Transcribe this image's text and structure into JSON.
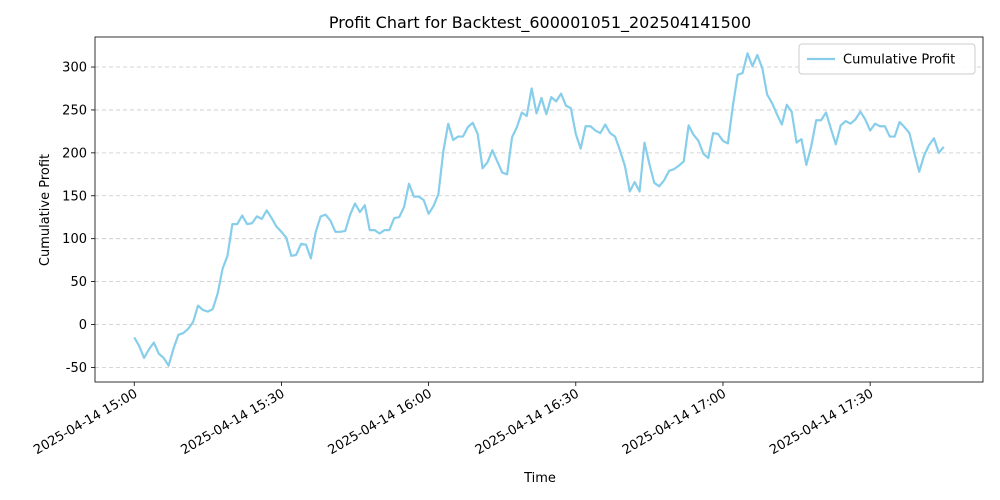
{
  "chart_data": {
    "type": "line",
    "title": "Profit Chart for Backtest_600001051_202504141500",
    "x_label": "Time",
    "y_label": "Cumulative Profit",
    "x": [
      "2025-04-14 15:00",
      "2025-04-14 15:01",
      "2025-04-14 15:02",
      "2025-04-14 15:03",
      "2025-04-14 15:04",
      "2025-04-14 15:05",
      "2025-04-14 15:06",
      "2025-04-14 15:07",
      "2025-04-14 15:08",
      "2025-04-14 15:09",
      "2025-04-14 15:10",
      "2025-04-14 15:11",
      "2025-04-14 15:12",
      "2025-04-14 15:13",
      "2025-04-14 15:14",
      "2025-04-14 15:15",
      "2025-04-14 15:16",
      "2025-04-14 15:17",
      "2025-04-14 15:18",
      "2025-04-14 15:19",
      "2025-04-14 15:20",
      "2025-04-14 15:21",
      "2025-04-14 15:22",
      "2025-04-14 15:23",
      "2025-04-14 15:24",
      "2025-04-14 15:25",
      "2025-04-14 15:26",
      "2025-04-14 15:27",
      "2025-04-14 15:28",
      "2025-04-14 15:29",
      "2025-04-14 15:30",
      "2025-04-14 15:31",
      "2025-04-14 15:32",
      "2025-04-14 15:33",
      "2025-04-14 15:34",
      "2025-04-14 15:35",
      "2025-04-14 15:36",
      "2025-04-14 15:37",
      "2025-04-14 15:38",
      "2025-04-14 15:39",
      "2025-04-14 15:40",
      "2025-04-14 15:41",
      "2025-04-14 15:42",
      "2025-04-14 15:43",
      "2025-04-14 15:44",
      "2025-04-14 15:45",
      "2025-04-14 15:46",
      "2025-04-14 15:47",
      "2025-04-14 15:48",
      "2025-04-14 15:49",
      "2025-04-14 15:50",
      "2025-04-14 15:51",
      "2025-04-14 15:52",
      "2025-04-14 15:53",
      "2025-04-14 15:54",
      "2025-04-14 15:55",
      "2025-04-14 15:56",
      "2025-04-14 15:57",
      "2025-04-14 15:58",
      "2025-04-14 15:59",
      "2025-04-14 16:00",
      "2025-04-14 16:01",
      "2025-04-14 16:02",
      "2025-04-14 16:03",
      "2025-04-14 16:04",
      "2025-04-14 16:05",
      "2025-04-14 16:06",
      "2025-04-14 16:07",
      "2025-04-14 16:08",
      "2025-04-14 16:09",
      "2025-04-14 16:10",
      "2025-04-14 16:11",
      "2025-04-14 16:12",
      "2025-04-14 16:13",
      "2025-04-14 16:14",
      "2025-04-14 16:15",
      "2025-04-14 16:16",
      "2025-04-14 16:17",
      "2025-04-14 16:18",
      "2025-04-14 16:19",
      "2025-04-14 16:20",
      "2025-04-14 16:21",
      "2025-04-14 16:22",
      "2025-04-14 16:23",
      "2025-04-14 16:24",
      "2025-04-14 16:25",
      "2025-04-14 16:26",
      "2025-04-14 16:27",
      "2025-04-14 16:28",
      "2025-04-14 16:29",
      "2025-04-14 16:30",
      "2025-04-14 16:31",
      "2025-04-14 16:32",
      "2025-04-14 16:33",
      "2025-04-14 16:34",
      "2025-04-14 16:35",
      "2025-04-14 16:36",
      "2025-04-14 16:37",
      "2025-04-14 16:38",
      "2025-04-14 16:39",
      "2025-04-14 16:40",
      "2025-04-14 16:41",
      "2025-04-14 16:42",
      "2025-04-14 16:43",
      "2025-04-14 16:44",
      "2025-04-14 16:45",
      "2025-04-14 16:46",
      "2025-04-14 16:47",
      "2025-04-14 16:48",
      "2025-04-14 16:49",
      "2025-04-14 16:50",
      "2025-04-14 16:51",
      "2025-04-14 16:52",
      "2025-04-14 16:53",
      "2025-04-14 16:54",
      "2025-04-14 16:55",
      "2025-04-14 16:56",
      "2025-04-14 16:57",
      "2025-04-14 16:58",
      "2025-04-14 16:59",
      "2025-04-14 17:00",
      "2025-04-14 17:01",
      "2025-04-14 17:02",
      "2025-04-14 17:03",
      "2025-04-14 17:04",
      "2025-04-14 17:05",
      "2025-04-14 17:06",
      "2025-04-14 17:07",
      "2025-04-14 17:08",
      "2025-04-14 17:09",
      "2025-04-14 17:10",
      "2025-04-14 17:11",
      "2025-04-14 17:12",
      "2025-04-14 17:13",
      "2025-04-14 17:14",
      "2025-04-14 17:15",
      "2025-04-14 17:16",
      "2025-04-14 17:17",
      "2025-04-14 17:18",
      "2025-04-14 17:19",
      "2025-04-14 17:20",
      "2025-04-14 17:21",
      "2025-04-14 17:22",
      "2025-04-14 17:23",
      "2025-04-14 17:24",
      "2025-04-14 17:25",
      "2025-04-14 17:26",
      "2025-04-14 17:27",
      "2025-04-14 17:28",
      "2025-04-14 17:29",
      "2025-04-14 17:30",
      "2025-04-14 17:31",
      "2025-04-14 17:32",
      "2025-04-14 17:33",
      "2025-04-14 17:34",
      "2025-04-14 17:35",
      "2025-04-14 17:36",
      "2025-04-14 17:37",
      "2025-04-14 17:38",
      "2025-04-14 17:39",
      "2025-04-14 17:40",
      "2025-04-14 17:41",
      "2025-04-14 17:42",
      "2025-04-14 17:43",
      "2025-04-14 17:44",
      "2025-04-14 17:45"
    ],
    "series": [
      {
        "name": "Cumulative Profit",
        "color": "#87ceeb",
        "values": [
          -15,
          -25,
          -39,
          -29,
          -21,
          -34,
          -39,
          -48,
          -28,
          -12,
          -10,
          -5,
          3,
          22,
          17,
          15,
          18,
          36,
          65,
          80,
          117,
          117,
          127,
          117,
          118,
          126,
          123,
          133,
          124,
          114,
          108,
          101,
          80,
          81,
          94,
          93,
          77,
          108,
          126,
          128,
          121,
          108,
          108,
          109,
          128,
          141,
          131,
          139,
          110,
          110,
          106,
          110,
          110,
          124,
          125,
          137,
          164,
          149,
          149,
          145,
          129,
          138,
          152,
          202,
          234,
          215,
          219,
          219,
          230,
          235,
          222,
          182,
          189,
          203,
          190,
          177,
          175,
          218,
          230,
          247,
          243,
          275,
          246,
          264,
          245,
          265,
          260,
          269,
          255,
          252,
          222,
          205,
          231,
          231,
          226,
          223,
          233,
          223,
          219,
          203,
          185,
          155,
          166,
          155,
          212,
          187,
          165,
          161,
          168,
          179,
          181,
          185,
          190,
          232,
          221,
          214,
          199,
          194,
          223,
          222,
          214,
          211,
          254,
          291,
          293,
          316,
          301,
          314,
          299,
          268,
          258,
          245,
          233,
          256,
          248,
          212,
          216,
          186,
          208,
          238,
          238,
          247,
          228,
          210,
          232,
          237,
          234,
          239,
          248,
          239,
          226,
          234,
          231,
          231,
          219,
          219,
          236,
          230,
          223,
          200,
          178,
          197,
          209,
          217,
          200,
          207
        ]
      }
    ],
    "xlim": [
      "2025-04-14 14:52",
      "2025-04-14 17:53"
    ],
    "xticks": [
      "2025-04-14 15:00",
      "2025-04-14 15:30",
      "2025-04-14 16:00",
      "2025-04-14 16:30",
      "2025-04-14 17:00",
      "2025-04-14 17:30"
    ],
    "ylim": [
      -67,
      335
    ],
    "yticks": [
      -50,
      0,
      50,
      100,
      150,
      200,
      250,
      300
    ],
    "grid": true,
    "legend": "upper right"
  }
}
